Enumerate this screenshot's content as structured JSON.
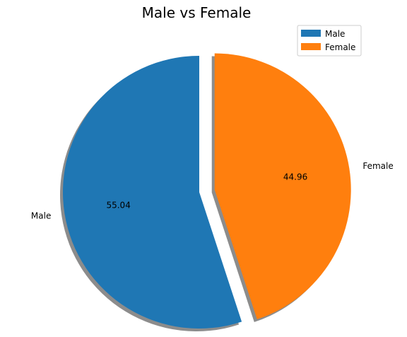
{
  "chart_data": {
    "type": "pie",
    "title": "Male vs Female",
    "labels": [
      "Male",
      "Female"
    ],
    "values": [
      55.04,
      44.96
    ],
    "percent_labels": [
      "55.04",
      "44.96"
    ],
    "colors": [
      "#1f77b4",
      "#ff7f0e"
    ],
    "exploded": [
      false,
      true
    ],
    "shadow": true,
    "legend": {
      "placement": "top-right",
      "entries": [
        "Male",
        "Female"
      ]
    }
  }
}
